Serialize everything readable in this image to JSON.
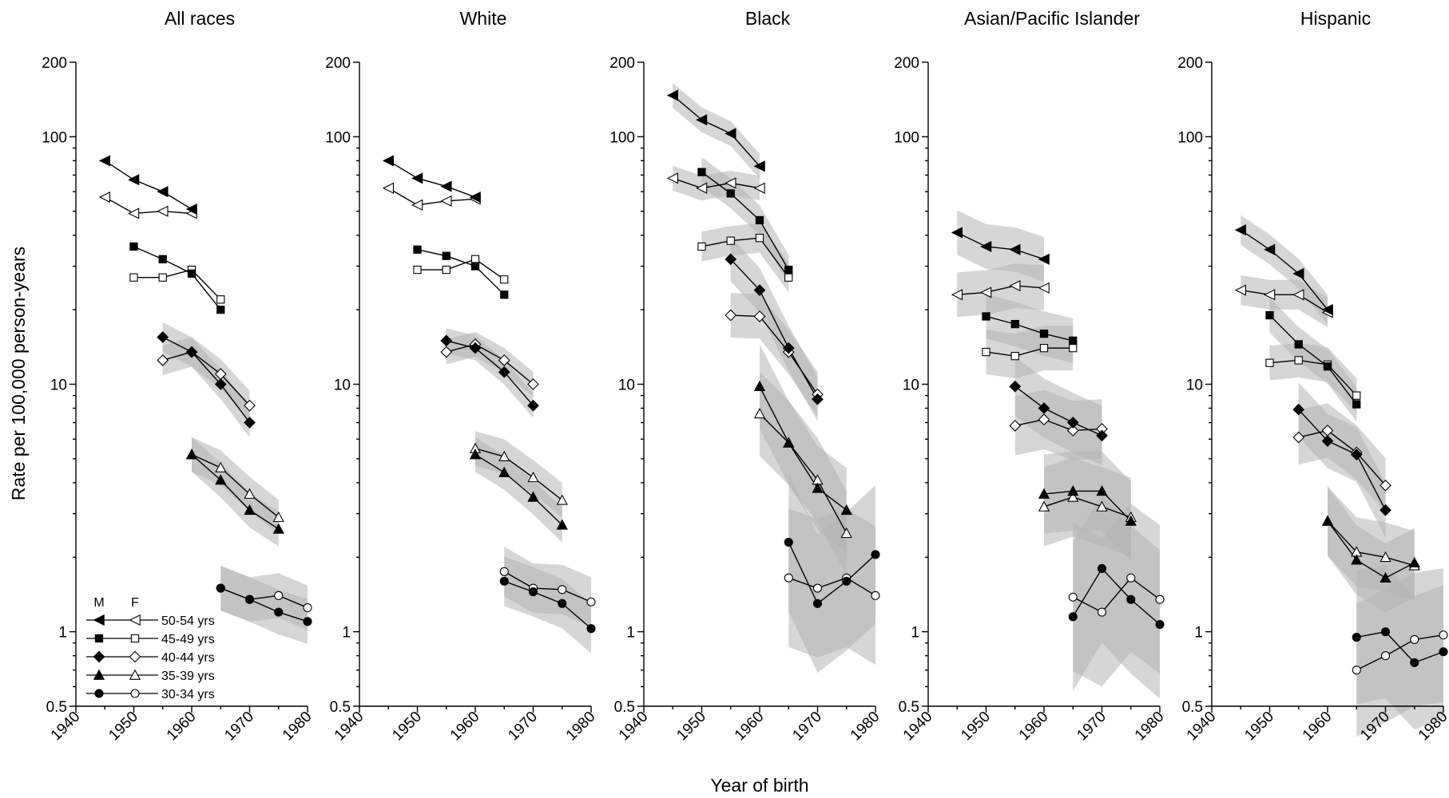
{
  "chart_data": {
    "type": "line",
    "xlabel": "Year of birth",
    "ylabel": "Rate per 100,000 person-years",
    "y_scale": "log",
    "ylim": [
      0.5,
      200
    ],
    "xlim": [
      1940,
      1980
    ],
    "y_ticks": [
      0.5,
      1,
      10,
      100,
      200
    ],
    "y_tick_labels": [
      "0.5",
      "1",
      "10",
      "100",
      "200"
    ],
    "x_ticks": [
      1940,
      1950,
      1960,
      1970,
      1980
    ],
    "x_tick_labels": [
      "1940",
      "1950",
      "1960",
      "1970",
      "1980"
    ],
    "legend": {
      "placement": "bottom-left of first panel",
      "header_male": "M",
      "header_female": "F",
      "entries": [
        {
          "label": "50-54 yrs",
          "marker": "triangle-left"
        },
        {
          "label": "45-49 yrs",
          "marker": "square"
        },
        {
          "label": "40-44 yrs",
          "marker": "diamond"
        },
        {
          "label": "35-39 yrs",
          "marker": "triangle-up"
        },
        {
          "label": "30-34 yrs",
          "marker": "circle"
        }
      ]
    },
    "marker_colors": {
      "male": "#000000",
      "female": "#ffffff"
    },
    "band_colors": {
      "light": "#b4b4b4",
      "dark": "#6e6e6e"
    },
    "panels": [
      {
        "title": "All races",
        "groups": [
          {
            "label": "50-54 yrs",
            "marker": "triangle-left",
            "x": [
              1945,
              1950,
              1955,
              1960
            ],
            "male": [
              80,
              67,
              60,
              51
            ],
            "female": [
              57,
              49,
              50,
              49
            ],
            "band": 0
          },
          {
            "label": "45-49 yrs",
            "marker": "square",
            "x": [
              1950,
              1955,
              1960,
              1965
            ],
            "male": [
              36,
              32,
              28,
              20
            ],
            "female": [
              27,
              27,
              29,
              22
            ],
            "band": 0
          },
          {
            "label": "40-44 yrs",
            "marker": "diamond",
            "x": [
              1955,
              1960,
              1965,
              1970
            ],
            "male": [
              15.5,
              13.5,
              10,
              7
            ],
            "female": [
              12.5,
              13.5,
              11,
              8.2
            ],
            "band": 0.06
          },
          {
            "label": "35-39 yrs",
            "marker": "triangle-up",
            "x": [
              1960,
              1965,
              1970,
              1975
            ],
            "male": [
              5.2,
              4.1,
              3.1,
              2.6
            ],
            "female": [
              5.2,
              4.6,
              3.6,
              2.9
            ],
            "band": 0.07
          },
          {
            "label": "30-34 yrs",
            "marker": "circle",
            "x": [
              1965,
              1970,
              1975,
              1980
            ],
            "male": [
              1.5,
              1.35,
              1.2,
              1.1
            ],
            "female": [
              1.5,
              1.35,
              1.4,
              1.25
            ],
            "band": 0.09
          }
        ]
      },
      {
        "title": "White",
        "groups": [
          {
            "label": "50-54 yrs",
            "marker": "triangle-left",
            "x": [
              1945,
              1950,
              1955,
              1960
            ],
            "male": [
              80,
              68,
              63,
              57
            ],
            "female": [
              62,
              53,
              55,
              56
            ],
            "band": 0
          },
          {
            "label": "45-49 yrs",
            "marker": "square",
            "x": [
              1950,
              1955,
              1960,
              1965
            ],
            "male": [
              35,
              33,
              30,
              23
            ],
            "female": [
              29,
              29,
              32,
              26.5
            ],
            "band": 0
          },
          {
            "label": "40-44 yrs",
            "marker": "diamond",
            "x": [
              1955,
              1960,
              1965,
              1970
            ],
            "male": [
              15,
              14,
              11.2,
              8.2
            ],
            "female": [
              13.5,
              14.5,
              12.5,
              10
            ],
            "band": 0.05
          },
          {
            "label": "35-39 yrs",
            "marker": "triangle-up",
            "x": [
              1960,
              1965,
              1970,
              1975
            ],
            "male": [
              5.2,
              4.4,
              3.5,
              2.7
            ],
            "female": [
              5.5,
              5.1,
              4.2,
              3.4
            ],
            "band": 0.07
          },
          {
            "label": "30-34 yrs",
            "marker": "circle",
            "x": [
              1965,
              1970,
              1975,
              1980
            ],
            "male": [
              1.6,
              1.45,
              1.3,
              1.03
            ],
            "female": [
              1.75,
              1.5,
              1.48,
              1.32
            ],
            "band": 0.1
          }
        ]
      },
      {
        "title": "Black",
        "groups": [
          {
            "label": "50-54 yrs",
            "marker": "triangle-left",
            "x": [
              1945,
              1950,
              1955,
              1960
            ],
            "male": [
              147,
              117,
              103,
              76
            ],
            "female": [
              68,
              62,
              65,
              62
            ],
            "band": 0.05
          },
          {
            "label": "45-49 yrs",
            "marker": "square",
            "x": [
              1950,
              1955,
              1960,
              1965
            ],
            "male": [
              72,
              59,
              46,
              29
            ],
            "female": [
              36,
              38,
              39,
              27
            ],
            "band": 0.06
          },
          {
            "label": "40-44 yrs",
            "marker": "diamond",
            "x": [
              1955,
              1960,
              1965,
              1970
            ],
            "male": [
              32,
              24,
              14,
              8.7
            ],
            "female": [
              19,
              18.8,
              13.5,
              9.1
            ],
            "band": 0.09
          },
          {
            "label": "35-39 yrs",
            "marker": "triangle-up",
            "x": [
              1960,
              1965,
              1970,
              1975
            ],
            "male": [
              9.8,
              5.8,
              3.8,
              3.1
            ],
            "female": [
              7.6,
              5.8,
              4.1,
              2.5
            ],
            "band": 0.17
          },
          {
            "label": "30-34 yrs",
            "marker": "circle",
            "x": [
              1965,
              1970,
              1975,
              1980
            ],
            "male": [
              2.3,
              1.3,
              1.6,
              2.05
            ],
            "female": [
              1.65,
              1.5,
              1.65,
              1.4
            ],
            "band": 0.28
          }
        ]
      },
      {
        "title": "Asian/Pacific Islander",
        "groups": [
          {
            "label": "50-54 yrs",
            "marker": "triangle-left",
            "x": [
              1945,
              1950,
              1955,
              1960
            ],
            "male": [
              41,
              36,
              35,
              32
            ],
            "female": [
              23,
              23.5,
              25,
              24.5
            ],
            "band": 0.09
          },
          {
            "label": "45-49 yrs",
            "marker": "square",
            "x": [
              1950,
              1955,
              1960,
              1965
            ],
            "male": [
              18.8,
              17.5,
              16,
              15
            ],
            "female": [
              13.5,
              13,
              14,
              14
            ],
            "band": 0.09
          },
          {
            "label": "40-44 yrs",
            "marker": "diamond",
            "x": [
              1955,
              1960,
              1965,
              1970
            ],
            "male": [
              9.8,
              8,
              7,
              6.2
            ],
            "female": [
              6.8,
              7.2,
              6.5,
              6.6
            ],
            "band": 0.12
          },
          {
            "label": "35-39 yrs",
            "marker": "triangle-up",
            "x": [
              1960,
              1965,
              1970,
              1975
            ],
            "male": [
              3.6,
              3.7,
              3.7,
              2.8
            ],
            "female": [
              3.2,
              3.5,
              3.2,
              2.9
            ],
            "band": 0.16
          },
          {
            "label": "30-34 yrs",
            "marker": "circle",
            "x": [
              1965,
              1970,
              1975,
              1980
            ],
            "male": [
              1.15,
              1.8,
              1.35,
              1.07
            ],
            "female": [
              1.38,
              1.2,
              1.65,
              1.35
            ],
            "band": 0.3
          }
        ]
      },
      {
        "title": "Hispanic",
        "groups": [
          {
            "label": "50-54 yrs",
            "marker": "triangle-left",
            "x": [
              1945,
              1950,
              1955,
              1960
            ],
            "male": [
              42,
              35,
              28,
              20
            ],
            "female": [
              24,
              23,
              23,
              19.5
            ],
            "band": 0.06
          },
          {
            "label": "45-49 yrs",
            "marker": "square",
            "x": [
              1950,
              1955,
              1960,
              1965
            ],
            "male": [
              19,
              14.5,
              11.8,
              8.3
            ],
            "female": [
              12.2,
              12.5,
              12,
              9
            ],
            "band": 0.07
          },
          {
            "label": "40-44 yrs",
            "marker": "diamond",
            "x": [
              1955,
              1960,
              1965,
              1970
            ],
            "male": [
              7.9,
              5.9,
              5.2,
              3.1
            ],
            "female": [
              6.1,
              6.5,
              5.3,
              3.9
            ],
            "band": 0.11
          },
          {
            "label": "35-39 yrs",
            "marker": "triangle-up",
            "x": [
              1960,
              1965,
              1970,
              1975
            ],
            "male": [
              2.8,
              1.95,
              1.65,
              1.9
            ],
            "female": [
              2.8,
              2.1,
              2.0,
              1.85
            ],
            "band": 0.14
          },
          {
            "label": "30-34 yrs",
            "marker": "circle",
            "x": [
              1965,
              1970,
              1975,
              1980
            ],
            "male": [
              0.95,
              1.0,
              0.75,
              0.83
            ],
            "female": [
              0.7,
              0.8,
              0.93,
              0.97
            ],
            "band": 0.27
          }
        ]
      }
    ]
  }
}
